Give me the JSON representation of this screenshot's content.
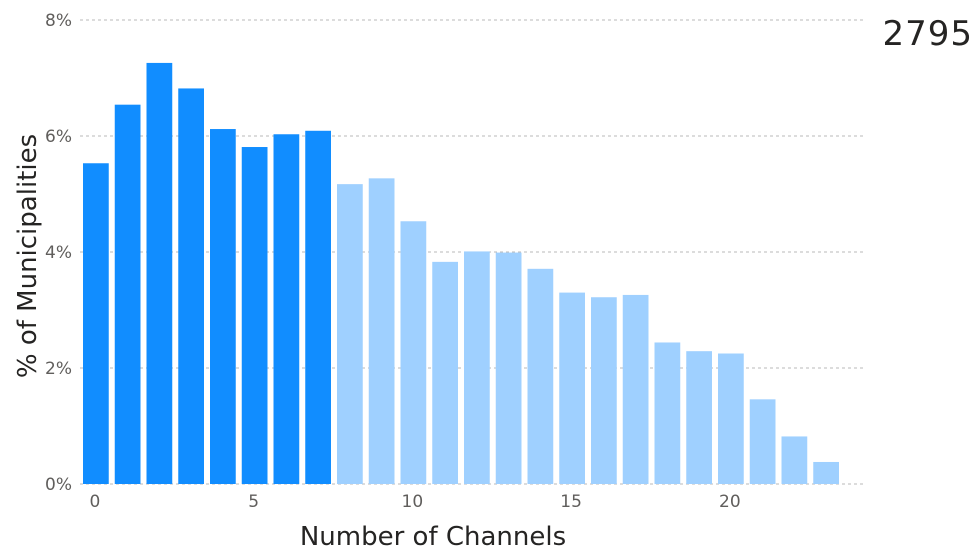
{
  "kpi": {
    "value": "2795"
  },
  "colors": {
    "highlight": "#118dff",
    "muted": "#9fd0ff",
    "grid": "#b8b8b8"
  },
  "chart_data": {
    "type": "bar",
    "xlabel": "Number of Channels",
    "ylabel": "% of Municipalities",
    "ylim": [
      0,
      8
    ],
    "xlim": [
      -0.5,
      24
    ],
    "grid": true,
    "y_ticks": [
      0,
      2,
      4,
      6,
      8
    ],
    "y_tick_labels": [
      "0%",
      "2%",
      "4%",
      "6%",
      "8%"
    ],
    "x_ticks": [
      0,
      5,
      10,
      15,
      20
    ],
    "x_tick_labels": [
      "0",
      "5",
      "10",
      "15",
      "20"
    ],
    "highlighted_through": 7,
    "categories": [
      0,
      1,
      2,
      3,
      4,
      5,
      6,
      7,
      8,
      9,
      10,
      11,
      12,
      13,
      14,
      15,
      16,
      17,
      18,
      19,
      20,
      21,
      22,
      23
    ],
    "values": [
      5.53,
      6.54,
      7.26,
      6.82,
      6.12,
      5.81,
      6.03,
      6.09,
      5.17,
      5.27,
      4.53,
      3.83,
      4.01,
      3.99,
      3.71,
      3.3,
      3.22,
      3.26,
      2.44,
      2.29,
      2.25,
      1.46,
      0.82,
      0.38
    ]
  }
}
